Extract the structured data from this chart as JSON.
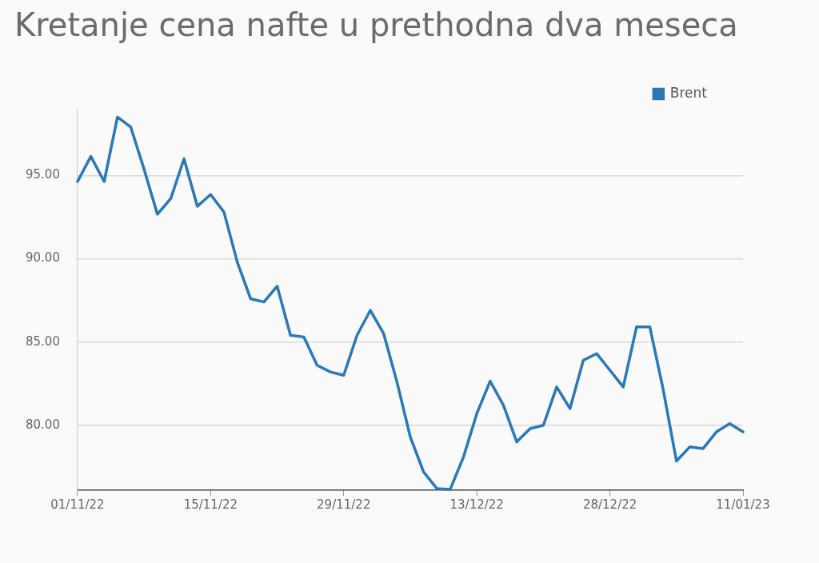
{
  "chart_data": {
    "type": "line",
    "title": "Kretanje cena nafte u prethodna dva meseca",
    "categories": [
      "01/11/22",
      null,
      null,
      null,
      null,
      null,
      null,
      null,
      null,
      null,
      "15/11/22",
      null,
      null,
      null,
      null,
      null,
      null,
      null,
      null,
      null,
      "29/11/22",
      null,
      null,
      null,
      null,
      null,
      null,
      null,
      null,
      null,
      "13/12/22",
      null,
      null,
      null,
      null,
      null,
      null,
      null,
      null,
      null,
      "28/12/22",
      null,
      null,
      null,
      null,
      null,
      null,
      null,
      null,
      null,
      "11/01/23"
    ],
    "series": [
      {
        "name": "Brent",
        "color": "#2a78b5",
        "values": [
          94.63,
          96.14,
          94.63,
          98.5,
          97.9,
          95.37,
          92.67,
          93.6,
          96.0,
          93.15,
          93.85,
          92.8,
          89.8,
          87.6,
          87.4,
          88.35,
          85.4,
          85.3,
          83.6,
          83.2,
          83.0,
          85.4,
          86.9,
          85.5,
          82.6,
          79.3,
          77.2,
          76.2,
          76.15,
          78.1,
          80.7,
          82.65,
          81.2,
          79.0,
          79.8,
          80.0,
          82.3,
          81.0,
          83.9,
          84.3,
          83.3,
          82.3,
          85.9,
          85.9,
          82.15,
          77.85,
          78.7,
          78.6,
          79.6,
          80.1,
          79.6
        ]
      }
    ],
    "yticks": [
      {
        "value": 80,
        "label": "80.00"
      },
      {
        "value": 85,
        "label": "85.00"
      },
      {
        "value": 90,
        "label": "90.00"
      },
      {
        "value": 95,
        "label": "95.00"
      }
    ],
    "ylim": [
      76.1,
      99
    ],
    "grid": "y",
    "legend": "top right",
    "marker": "none",
    "line_style": "solid"
  }
}
